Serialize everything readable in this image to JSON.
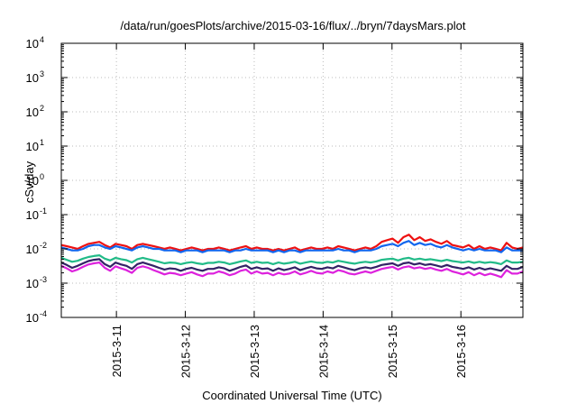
{
  "chart_data": {
    "type": "line",
    "title": "/data/run/goesPlots/archive/2015-03-16/flux/../bryn/7daysMars.plot",
    "xlabel": "Coordinated Universal Time (UTC)",
    "ylabel": "cSv/day",
    "yscale": "log",
    "ylim": [
      0.0001,
      10000
    ],
    "y_ticks": [
      {
        "base": "10",
        "exp": "4",
        "value": 10000
      },
      {
        "base": "10",
        "exp": "3",
        "value": 1000
      },
      {
        "base": "10",
        "exp": "2",
        "value": 100
      },
      {
        "base": "10",
        "exp": "1",
        "value": 10
      },
      {
        "base": "10",
        "exp": "0",
        "value": 1
      },
      {
        "base": "10",
        "exp": "-1",
        "value": 0.1
      },
      {
        "base": "10",
        "exp": "-2",
        "value": 0.01
      },
      {
        "base": "10",
        "exp": "-3",
        "value": 0.001
      },
      {
        "base": "10",
        "exp": "-4",
        "value": 0.0001
      }
    ],
    "x_ticks": [
      "2015-3-11",
      "2015-3-12",
      "2015-3-13",
      "2015-3-14",
      "2015-3-15",
      "2015-3-16"
    ],
    "x_range_days": [
      10.2,
      16.9
    ],
    "grid": true,
    "series": [
      {
        "color": "#ee1111",
        "values": [
          0.013,
          0.012,
          0.011,
          0.01,
          0.012,
          0.014,
          0.015,
          0.016,
          0.013,
          0.011,
          0.014,
          0.013,
          0.012,
          0.01,
          0.013,
          0.014,
          0.013,
          0.012,
          0.011,
          0.01,
          0.011,
          0.01,
          0.009,
          0.01,
          0.011,
          0.01,
          0.009,
          0.01,
          0.01,
          0.011,
          0.01,
          0.009,
          0.01,
          0.011,
          0.012,
          0.01,
          0.011,
          0.01,
          0.01,
          0.009,
          0.01,
          0.009,
          0.01,
          0.011,
          0.009,
          0.01,
          0.011,
          0.01,
          0.01,
          0.011,
          0.01,
          0.012,
          0.011,
          0.01,
          0.009,
          0.01,
          0.011,
          0.01,
          0.012,
          0.016,
          0.018,
          0.02,
          0.015,
          0.022,
          0.026,
          0.018,
          0.022,
          0.017,
          0.019,
          0.016,
          0.014,
          0.017,
          0.013,
          0.012,
          0.011,
          0.013,
          0.01,
          0.012,
          0.01,
          0.011,
          0.01,
          0.009,
          0.015,
          0.011,
          0.01,
          0.011
        ]
      },
      {
        "color": "#1166ee",
        "values": [
          0.011,
          0.01,
          0.009,
          0.009,
          0.01,
          0.012,
          0.013,
          0.013,
          0.011,
          0.01,
          0.012,
          0.011,
          0.01,
          0.009,
          0.011,
          0.012,
          0.011,
          0.01,
          0.01,
          0.009,
          0.009,
          0.009,
          0.008,
          0.009,
          0.009,
          0.009,
          0.008,
          0.009,
          0.009,
          0.009,
          0.009,
          0.008,
          0.009,
          0.009,
          0.01,
          0.009,
          0.009,
          0.009,
          0.009,
          0.008,
          0.009,
          0.008,
          0.009,
          0.009,
          0.008,
          0.009,
          0.009,
          0.009,
          0.009,
          0.009,
          0.009,
          0.01,
          0.009,
          0.009,
          0.008,
          0.009,
          0.009,
          0.009,
          0.01,
          0.012,
          0.013,
          0.014,
          0.012,
          0.015,
          0.017,
          0.013,
          0.015,
          0.013,
          0.014,
          0.012,
          0.011,
          0.013,
          0.011,
          0.01,
          0.009,
          0.01,
          0.009,
          0.01,
          0.009,
          0.009,
          0.009,
          0.008,
          0.011,
          0.009,
          0.009,
          0.009
        ]
      },
      {
        "color": "#22bb88",
        "values": [
          0.0055,
          0.0048,
          0.0042,
          0.0045,
          0.0052,
          0.0058,
          0.0062,
          0.0065,
          0.0052,
          0.0046,
          0.0055,
          0.005,
          0.0047,
          0.004,
          0.005,
          0.0055,
          0.005,
          0.0046,
          0.0042,
          0.0038,
          0.004,
          0.0039,
          0.0036,
          0.0039,
          0.0041,
          0.0038,
          0.0036,
          0.0039,
          0.0039,
          0.0042,
          0.004,
          0.0036,
          0.0039,
          0.0043,
          0.0046,
          0.0039,
          0.0042,
          0.0039,
          0.004,
          0.0036,
          0.004,
          0.0037,
          0.0039,
          0.0042,
          0.0037,
          0.004,
          0.0043,
          0.004,
          0.0039,
          0.0042,
          0.004,
          0.0045,
          0.0042,
          0.0039,
          0.0037,
          0.004,
          0.0042,
          0.004,
          0.0043,
          0.0048,
          0.005,
          0.0052,
          0.0046,
          0.0052,
          0.0055,
          0.0049,
          0.0052,
          0.0048,
          0.005,
          0.0047,
          0.0044,
          0.0048,
          0.0044,
          0.0042,
          0.004,
          0.0043,
          0.0039,
          0.0042,
          0.0039,
          0.0041,
          0.0039,
          0.0036,
          0.0046,
          0.004,
          0.004,
          0.0042
        ]
      },
      {
        "color": "#332266",
        "values": [
          0.004,
          0.0034,
          0.0028,
          0.0032,
          0.0038,
          0.0044,
          0.0048,
          0.005,
          0.0036,
          0.003,
          0.004,
          0.0035,
          0.0032,
          0.0026,
          0.0036,
          0.004,
          0.0036,
          0.0032,
          0.0028,
          0.0025,
          0.0027,
          0.0026,
          0.0023,
          0.0026,
          0.0028,
          0.0025,
          0.0023,
          0.0026,
          0.0026,
          0.0029,
          0.0027,
          0.0023,
          0.0026,
          0.003,
          0.0033,
          0.0026,
          0.0029,
          0.0026,
          0.0027,
          0.0023,
          0.0027,
          0.0024,
          0.0026,
          0.0029,
          0.0024,
          0.0027,
          0.003,
          0.0027,
          0.0026,
          0.0029,
          0.0027,
          0.0032,
          0.0029,
          0.0026,
          0.0024,
          0.0027,
          0.0029,
          0.0027,
          0.003,
          0.0034,
          0.0036,
          0.0038,
          0.0032,
          0.0038,
          0.004,
          0.0035,
          0.0038,
          0.0034,
          0.0036,
          0.0033,
          0.003,
          0.0034,
          0.003,
          0.0028,
          0.0026,
          0.0029,
          0.0025,
          0.0028,
          0.0025,
          0.0027,
          0.0025,
          0.0023,
          0.0032,
          0.0026,
          0.0026,
          0.003
        ]
      },
      {
        "color": "#dd22dd",
        "values": [
          0.0032,
          0.0027,
          0.0022,
          0.0025,
          0.003,
          0.0035,
          0.0038,
          0.004,
          0.0028,
          0.0023,
          0.0031,
          0.0027,
          0.0024,
          0.002,
          0.0028,
          0.0031,
          0.0028,
          0.0024,
          0.0021,
          0.0018,
          0.002,
          0.0019,
          0.0017,
          0.0019,
          0.0021,
          0.0018,
          0.0016,
          0.0019,
          0.0019,
          0.0022,
          0.002,
          0.0017,
          0.0019,
          0.0023,
          0.0025,
          0.0019,
          0.0022,
          0.0019,
          0.002,
          0.0017,
          0.002,
          0.0018,
          0.0019,
          0.0022,
          0.0018,
          0.002,
          0.0023,
          0.002,
          0.0019,
          0.0022,
          0.002,
          0.0024,
          0.0022,
          0.0019,
          0.0018,
          0.002,
          0.0022,
          0.002,
          0.0023,
          0.0026,
          0.0028,
          0.003,
          0.0025,
          0.0029,
          0.0031,
          0.0027,
          0.0029,
          0.0026,
          0.0028,
          0.0025,
          0.0023,
          0.0026,
          0.0022,
          0.002,
          0.0018,
          0.0021,
          0.0017,
          0.002,
          0.0017,
          0.0019,
          0.0017,
          0.0015,
          0.0024,
          0.0019,
          0.0019,
          0.0022
        ]
      }
    ]
  }
}
